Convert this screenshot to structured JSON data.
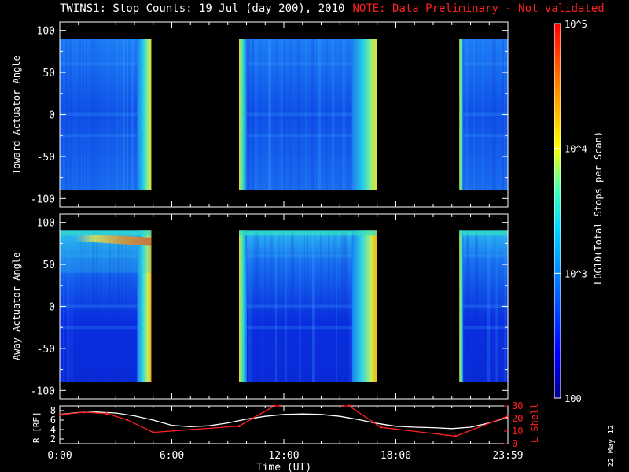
{
  "title": {
    "main": "TWINS1: Stop Counts: 19 Jul (day 200), 2010",
    "note": "NOTE: Data Preliminary - Not validated",
    "note_color": "#ff2020"
  },
  "datestamp": "22 May 12",
  "chart_data": [
    {
      "type": "heatmap",
      "name": "toward",
      "ylabel": "Toward Actuator Angle",
      "ylim": [
        -110,
        110
      ],
      "yticks": [
        100,
        50,
        0,
        -50,
        -100
      ],
      "xlim_hours": [
        0,
        24
      ],
      "data_gaps_hours": [
        [
          4.9,
          9.6
        ],
        [
          17.0,
          21.4
        ]
      ],
      "data_blocks_hours": [
        [
          0.0,
          4.9
        ],
        [
          9.6,
          17.0
        ],
        [
          21.4,
          24.0
        ]
      ],
      "angle_range": [
        -90,
        90
      ]
    },
    {
      "type": "heatmap",
      "name": "away",
      "ylabel": "Away Actuator Angle",
      "ylim": [
        -110,
        110
      ],
      "yticks": [
        100,
        50,
        0,
        -50,
        -100
      ],
      "xlim_hours": [
        0,
        24
      ],
      "data_gaps_hours": [
        [
          4.9,
          9.6
        ],
        [
          17.0,
          21.4
        ]
      ],
      "data_blocks_hours": [
        [
          0.0,
          4.9
        ],
        [
          9.6,
          17.0
        ],
        [
          21.4,
          24.0
        ]
      ],
      "angle_range": [
        -90,
        90
      ]
    },
    {
      "type": "line",
      "name": "orbit",
      "xlabel": "Time (UT)",
      "xticks": [
        "0:00",
        "6:00",
        "12:00",
        "18:00",
        "23:59"
      ],
      "xtick_hours": [
        0,
        6,
        12,
        18,
        24
      ],
      "ylabel_left": "R [RE]",
      "ylim_left": [
        1,
        9
      ],
      "yticks_left": [
        2,
        4,
        6,
        8
      ],
      "ylabel_right": "L Shell",
      "ylim_right": [
        0,
        30
      ],
      "yticks_right": [
        0,
        10,
        20,
        30
      ],
      "series": [
        {
          "name": "R",
          "color": "#ffffff",
          "x": [
            0,
            1,
            2,
            3,
            4,
            5,
            6,
            7,
            8,
            9,
            10,
            11,
            12,
            13,
            14,
            15,
            16,
            17,
            18,
            19,
            20,
            21,
            22,
            23,
            24
          ],
          "values": [
            7.2,
            7.6,
            7.7,
            7.5,
            6.9,
            6.0,
            4.9,
            4.6,
            4.8,
            5.4,
            6.2,
            6.8,
            7.2,
            7.3,
            7.2,
            6.8,
            6.1,
            5.3,
            4.7,
            4.5,
            4.4,
            4.2,
            4.5,
            5.4,
            6.6
          ]
        },
        {
          "name": "L Shell",
          "color": "#ff2020",
          "x": [
            0,
            1.3,
            2.5,
            3.6,
            5.0,
            9.6,
            11.5,
            11.8
          ],
          "values": [
            23,
            25,
            24,
            19,
            9,
            14,
            30,
            31
          ]
        },
        {
          "name": "L Shell",
          "color": "#ff2020",
          "x": [
            15.2,
            15.5,
            17.2,
            21.2,
            24
          ],
          "values": [
            31,
            30,
            13,
            6,
            22
          ]
        }
      ]
    }
  ],
  "colorbar": {
    "label": "LOG10(Total Stops per Scan)",
    "tick_labels": [
      "10^5",
      "10^4",
      "10^3",
      "100"
    ],
    "tick_values": [
      100000,
      10000,
      1000,
      100
    ],
    "log_range": [
      2,
      5
    ]
  }
}
